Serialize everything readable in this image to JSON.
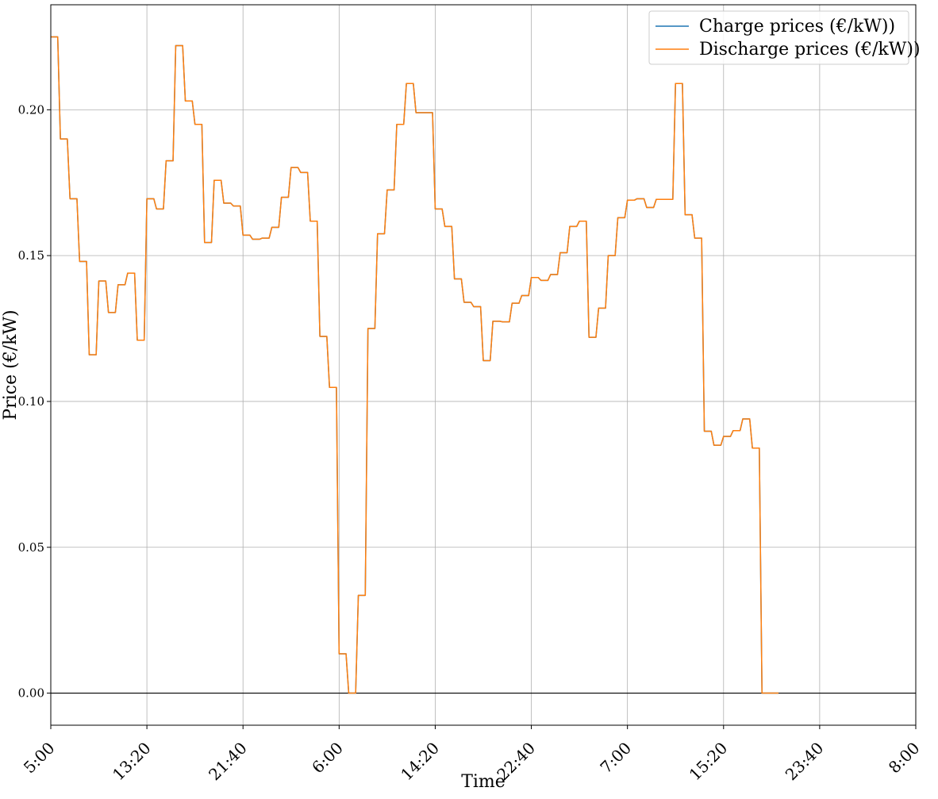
{
  "chart_data": {
    "type": "line",
    "xlabel": "Time",
    "ylabel": "Price (€/kW)",
    "x_ticks": [
      "5:00",
      "13:20",
      "21:40",
      "6:00",
      "14:20",
      "22:40",
      "7:00",
      "15:20",
      "23:40",
      "8:00"
    ],
    "xlim": [
      0,
      90
    ],
    "ylim": [
      -0.011,
      0.236
    ],
    "y_ticks": [
      "0.00",
      "0.05",
      "0.10",
      "0.15",
      "0.20"
    ],
    "y_tick_values": [
      0.0,
      0.05,
      0.1,
      0.15,
      0.2
    ],
    "grid": true,
    "legend_position": "top-right",
    "x_unit": "hours after 5:00",
    "step_hours": 1,
    "series": [
      {
        "name": "Charge prices (€/kW))",
        "color": "#1f77b4",
        "values": [
          0.225,
          0.19,
          0.1695,
          0.148,
          0.116,
          0.1413,
          0.1305,
          0.14,
          0.144,
          0.121,
          0.1695,
          0.166,
          0.1825,
          0.222,
          0.203,
          0.195,
          0.1545,
          0.1758,
          0.168,
          0.167,
          0.157,
          0.1556,
          0.156,
          0.1597,
          0.17,
          0.1802,
          0.1785,
          0.1618,
          0.1223,
          0.1048,
          0.0135,
          0.0,
          0.0335,
          0.125,
          0.1575,
          0.1725,
          0.195,
          0.209,
          0.199,
          0.199,
          0.166,
          0.16,
          0.142,
          0.134,
          0.1325,
          0.114,
          0.1275,
          0.1273,
          0.1337,
          0.1363,
          0.1425,
          0.1415,
          0.1435,
          0.151,
          0.16,
          0.1618,
          0.122,
          0.132,
          0.15,
          0.163,
          0.169,
          0.1695,
          0.1665,
          0.1693,
          0.1693,
          0.209,
          0.164,
          0.156,
          0.0898,
          0.085,
          0.088,
          0.09,
          0.094,
          0.084,
          0.0,
          0.0
        ]
      },
      {
        "name": "Discharge prices (€/kW))",
        "color": "#ff7f0e",
        "values": [
          0.225,
          0.19,
          0.1695,
          0.148,
          0.116,
          0.1413,
          0.1305,
          0.14,
          0.144,
          0.121,
          0.1695,
          0.166,
          0.1825,
          0.222,
          0.203,
          0.195,
          0.1545,
          0.1758,
          0.168,
          0.167,
          0.157,
          0.1556,
          0.156,
          0.1597,
          0.17,
          0.1802,
          0.1785,
          0.1618,
          0.1223,
          0.1048,
          0.0135,
          0.0,
          0.0335,
          0.125,
          0.1575,
          0.1725,
          0.195,
          0.209,
          0.199,
          0.199,
          0.166,
          0.16,
          0.142,
          0.134,
          0.1325,
          0.114,
          0.1275,
          0.1273,
          0.1337,
          0.1363,
          0.1425,
          0.1415,
          0.1435,
          0.151,
          0.16,
          0.1618,
          0.122,
          0.132,
          0.15,
          0.163,
          0.169,
          0.1695,
          0.1665,
          0.1693,
          0.1693,
          0.209,
          0.164,
          0.156,
          0.0898,
          0.085,
          0.088,
          0.09,
          0.094,
          0.084,
          0.0,
          0.0
        ]
      }
    ],
    "zero_line": {
      "y": 0.0,
      "color": "#000000"
    }
  }
}
